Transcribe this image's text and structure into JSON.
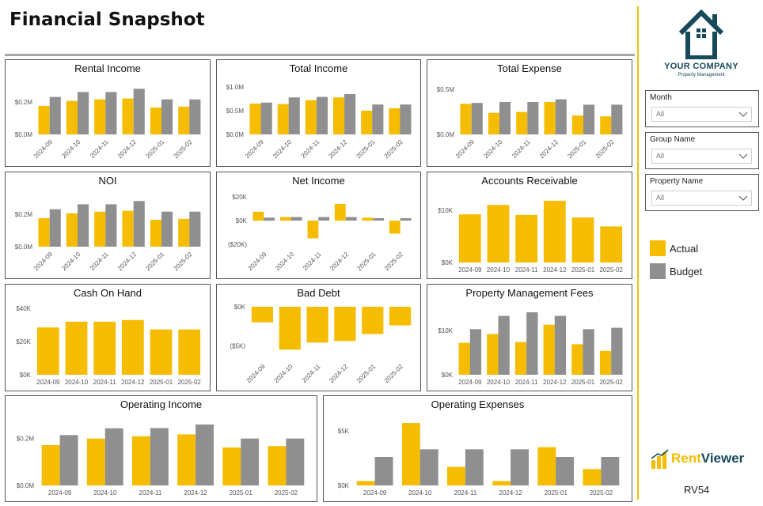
{
  "page": {
    "title": "Financial Snapshot",
    "company_name": "YOUR COMPANY",
    "company_tagline": "Property Management",
    "brand_name_part1": "Rent",
    "brand_name_part2": "Viewer",
    "report_code": "RV54"
  },
  "colors": {
    "actual": "#F5BC00",
    "budget": "#8F8F8F",
    "accent": "#F2C100",
    "logo": "#16495C"
  },
  "filters": [
    {
      "label": "Month",
      "value": "All"
    },
    {
      "label": "Group Name",
      "value": "All"
    },
    {
      "label": "Property Name",
      "value": "All"
    }
  ],
  "legend": [
    {
      "label": "Actual",
      "key": "actual"
    },
    {
      "label": "Budget",
      "key": "budget"
    }
  ],
  "chart_data": [
    {
      "id": "rental-income",
      "type": "bar",
      "title": "Rental Income",
      "categories": [
        "2024-09",
        "2024-10",
        "2024-11",
        "2024-12",
        "2025-01",
        "2025-02"
      ],
      "ylim": [
        0,
        0.32
      ],
      "yticks": [
        0,
        0.2
      ],
      "ytick_labels": [
        "$0.0M",
        "$0.2M"
      ],
      "series": [
        {
          "name": "Actual",
          "values": [
            0.175,
            0.205,
            0.215,
            0.22,
            0.165,
            0.17
          ]
        },
        {
          "name": "Budget",
          "values": [
            0.23,
            0.26,
            0.26,
            0.28,
            0.215,
            0.215
          ]
        }
      ]
    },
    {
      "id": "total-income",
      "type": "bar",
      "title": "Total Income",
      "categories": [
        "2024-09",
        "2024-10",
        "2024-11",
        "2024-12",
        "2025-01",
        "2025-02"
      ],
      "ylim": [
        0,
        1.1
      ],
      "yticks": [
        0,
        0.5,
        1.0
      ],
      "ytick_labels": [
        "$0.0M",
        "$0.5M",
        "$1.0M"
      ],
      "series": [
        {
          "name": "Actual",
          "values": [
            0.65,
            0.64,
            0.72,
            0.78,
            0.5,
            0.55
          ]
        },
        {
          "name": "Budget",
          "values": [
            0.67,
            0.78,
            0.79,
            0.85,
            0.63,
            0.63
          ]
        }
      ]
    },
    {
      "id": "total-expense",
      "type": "bar",
      "title": "Total Expense",
      "categories": [
        "2024-09",
        "2024-10",
        "2024-11",
        "2024-12",
        "2025-01",
        "2025-02"
      ],
      "ylim": [
        0,
        0.58
      ],
      "yticks": [
        0,
        0.5
      ],
      "ytick_labels": [
        "$0.0M",
        "$0.5M"
      ],
      "series": [
        {
          "name": "Actual",
          "values": [
            0.34,
            0.24,
            0.25,
            0.36,
            0.21,
            0.2
          ]
        },
        {
          "name": "Budget",
          "values": [
            0.35,
            0.36,
            0.36,
            0.39,
            0.33,
            0.33
          ]
        }
      ]
    },
    {
      "id": "noi",
      "type": "bar",
      "title": "NOI",
      "categories": [
        "2024-09",
        "2024-10",
        "2024-11",
        "2024-12",
        "2025-01",
        "2025-02"
      ],
      "ylim": [
        0,
        0.32
      ],
      "yticks": [
        0,
        0.2
      ],
      "ytick_labels": [
        "$0.0M",
        "$0.2M"
      ],
      "series": [
        {
          "name": "Actual",
          "values": [
            0.175,
            0.205,
            0.215,
            0.22,
            0.165,
            0.17
          ]
        },
        {
          "name": "Budget",
          "values": [
            0.23,
            0.26,
            0.26,
            0.28,
            0.215,
            0.215
          ]
        }
      ]
    },
    {
      "id": "net-income",
      "type": "bar",
      "title": "Net Income",
      "categories": [
        "2024-09",
        "2024-10",
        "2024-11",
        "2024-12",
        "2025-01",
        "2025-02"
      ],
      "ylim": [
        -22,
        22
      ],
      "yticks": [
        20,
        0,
        -20
      ],
      "ytick_labels": [
        "$20K",
        "$0K",
        "($20K)"
      ],
      "series": [
        {
          "name": "Actual",
          "values": [
            7.5,
            3,
            -15,
            14,
            2.5,
            -11
          ]
        },
        {
          "name": "Budget",
          "values": [
            2.5,
            3,
            3,
            3,
            2,
            2
          ]
        }
      ]
    },
    {
      "id": "accounts-receivable",
      "type": "bar",
      "title": "Accounts Receivable",
      "categories": [
        "2024-09",
        "2024-10",
        "2024-11",
        "2024-12",
        "2025-01",
        "2025-02"
      ],
      "ylim": [
        0,
        13
      ],
      "yticks": [
        0,
        10
      ],
      "ytick_labels": [
        "$0K",
        "$10K"
      ],
      "series": [
        {
          "name": "Actual",
          "values": [
            9.2,
            11,
            9.1,
            11.8,
            8.6,
            6.9
          ]
        }
      ]
    },
    {
      "id": "cash-on-hand",
      "type": "bar",
      "title": "Cash On Hand",
      "categories": [
        "2024-09",
        "2024-10",
        "2024-11",
        "2024-12",
        "2025-01",
        "2025-02"
      ],
      "ylim": [
        0,
        41
      ],
      "yticks": [
        0,
        20,
        40
      ],
      "ytick_labels": [
        "$0K",
        "$20K",
        "$40K"
      ],
      "series": [
        {
          "name": "Actual",
          "values": [
            28.5,
            32,
            32,
            33,
            27.3,
            27.3
          ]
        }
      ]
    },
    {
      "id": "bad-debt",
      "type": "bar",
      "title": "Bad Debt",
      "categories": [
        "2024-09",
        "2024-10",
        "2024-11",
        "2024-12",
        "2025-01",
        "2025-02"
      ],
      "ylim": [
        -6.7,
        0
      ],
      "yticks": [
        0,
        -5
      ],
      "ytick_labels": [
        "$0K",
        "($5K)"
      ],
      "series": [
        {
          "name": "Actual",
          "values": [
            -2,
            -5.5,
            -4.6,
            -4.4,
            -3.5,
            -2.4
          ]
        }
      ]
    },
    {
      "id": "property-management-fees",
      "type": "bar",
      "title": "Property Management Fees",
      "categories": [
        "2024-09",
        "2024-10",
        "2024-11",
        "2024-12",
        "2025-01",
        "2025-02"
      ],
      "ylim": [
        0,
        15
      ],
      "yticks": [
        0,
        10
      ],
      "ytick_labels": [
        "$0K",
        "$10K"
      ],
      "series": [
        {
          "name": "Actual",
          "values": [
            7.2,
            9.2,
            7.4,
            11.3,
            6.9,
            5.4
          ]
        },
        {
          "name": "Budget",
          "values": [
            10.3,
            13.3,
            14.1,
            13.3,
            10.3,
            10.6
          ]
        }
      ]
    },
    {
      "id": "operating-income",
      "type": "bar",
      "title": "Operating Income",
      "categories": [
        "2024-09",
        "2024-10",
        "2024-11",
        "2024-12",
        "2025-01",
        "2025-02"
      ],
      "ylim": [
        0,
        0.28
      ],
      "yticks": [
        0,
        0.2
      ],
      "ytick_labels": [
        "$0.0M",
        "$0.2M"
      ],
      "series": [
        {
          "name": "Actual",
          "values": [
            0.172,
            0.2,
            0.21,
            0.218,
            0.162,
            0.168
          ]
        },
        {
          "name": "Budget",
          "values": [
            0.215,
            0.244,
            0.245,
            0.26,
            0.2,
            0.2
          ]
        }
      ]
    },
    {
      "id": "operating-expenses",
      "type": "bar",
      "title": "Operating Expenses",
      "categories": [
        "2024-09",
        "2024-10",
        "2024-11",
        "2024-12",
        "2025-01",
        "2025-02"
      ],
      "ylim": [
        0,
        6
      ],
      "yticks": [
        0,
        5
      ],
      "ytick_labels": [
        "$0K",
        "$5K"
      ],
      "series": [
        {
          "name": "Actual",
          "values": [
            0.4,
            5.7,
            1.7,
            0.4,
            3.5,
            1.5
          ]
        },
        {
          "name": "Budget",
          "values": [
            2.6,
            3.3,
            3.3,
            3.3,
            2.6,
            2.6
          ]
        }
      ]
    }
  ]
}
